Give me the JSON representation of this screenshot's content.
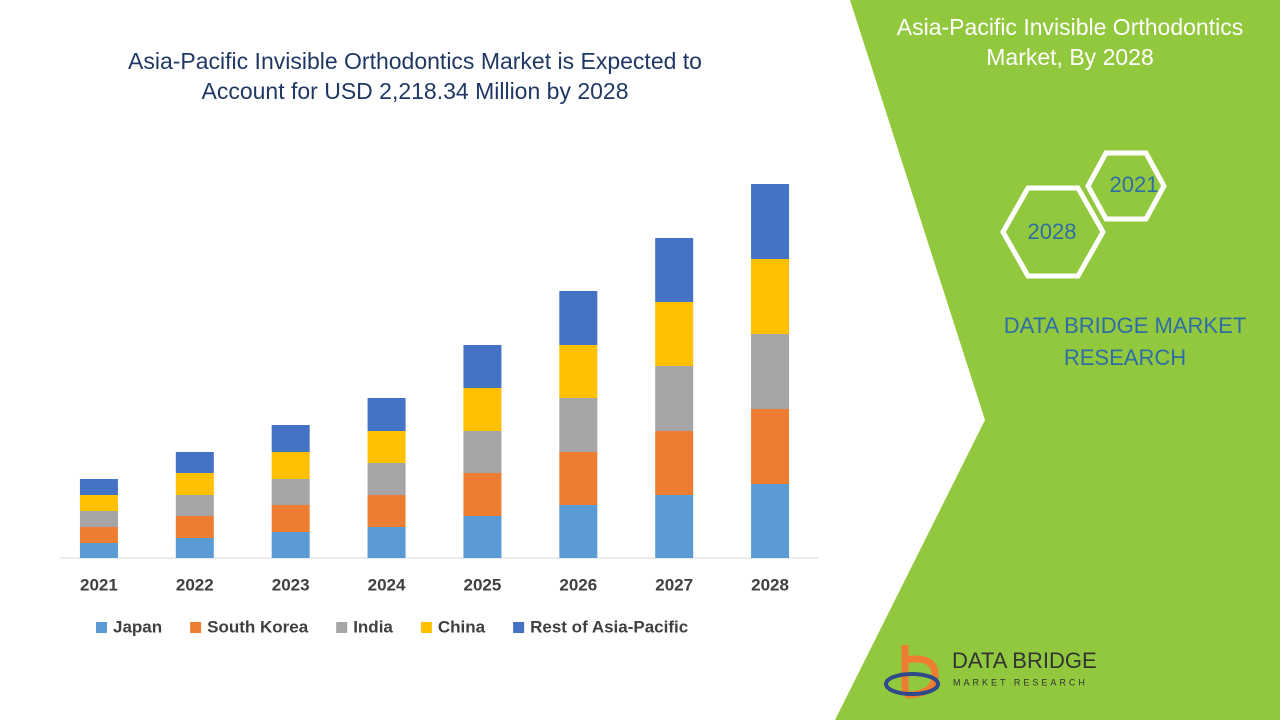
{
  "chart_data": {
    "type": "stacked_bar",
    "title": "Asia-Pacific Invisible Orthodontics Market is Expected to Account for USD 2,218.34 Million by 2028",
    "categories": [
      "2021",
      "2022",
      "2023",
      "2024",
      "2025",
      "2026",
      "2027",
      "2028"
    ],
    "series": [
      {
        "name": "Japan",
        "color": "#5b9bd5",
        "values": [
          15,
          20,
          26,
          31,
          42,
          53,
          63,
          74
        ]
      },
      {
        "name": "South Korea",
        "color": "#ed7d31",
        "values": [
          16,
          22,
          27,
          32,
          43,
          53,
          64,
          75
        ]
      },
      {
        "name": "India",
        "color": "#a5a5a5",
        "values": [
          16,
          21,
          26,
          32,
          42,
          54,
          65,
          75
        ]
      },
      {
        "name": "China",
        "color": "#ffc000",
        "values": [
          16,
          22,
          27,
          32,
          43,
          53,
          64,
          75
        ]
      },
      {
        "name": "Rest of Asia-Pacific",
        "color": "#4472c4",
        "values": [
          16,
          21,
          27,
          33,
          43,
          54,
          64,
          75
        ]
      }
    ],
    "legend": "bottom"
  },
  "side_panel": {
    "title": "Asia-Pacific Invisible Orthodontics Market, By 2028",
    "hexagons": [
      "2021",
      "2028"
    ],
    "brand": "DATA BRIDGE MARKET RESEARCH"
  },
  "logo": {
    "name": "DATA BRIDGE",
    "tagline": "MARKET RESEARCH"
  }
}
